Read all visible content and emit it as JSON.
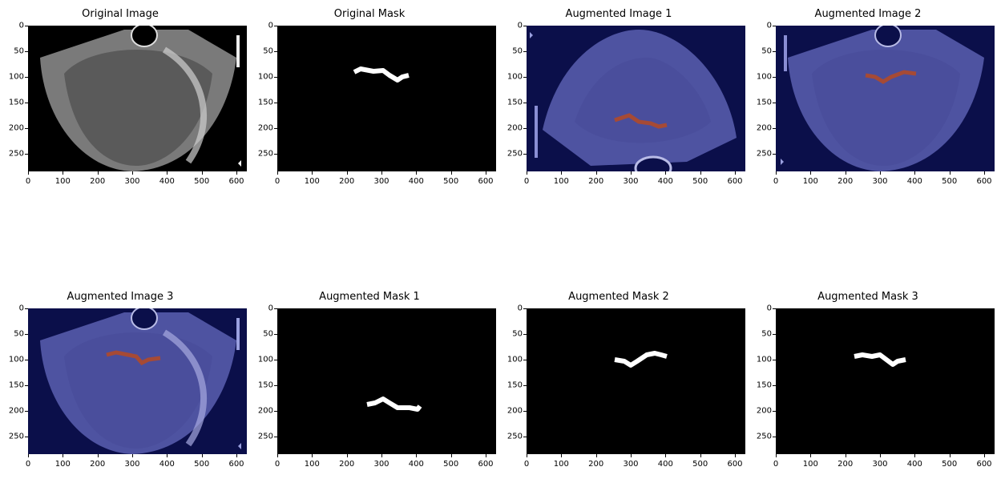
{
  "figure": {
    "panels": [
      {
        "id": "p1",
        "title": "Original Image"
      },
      {
        "id": "p2",
        "title": "Original Mask"
      },
      {
        "id": "p3",
        "title": "Augmented Image 1"
      },
      {
        "id": "p4",
        "title": "Augmented Image 2"
      },
      {
        "id": "p5",
        "title": "Augmented Image 3"
      },
      {
        "id": "p6",
        "title": "Augmented Mask 1"
      },
      {
        "id": "p7",
        "title": "Augmented Mask 2"
      },
      {
        "id": "p8",
        "title": "Augmented Mask 3"
      }
    ],
    "x_ticks": [
      "0",
      "100",
      "200",
      "300",
      "400",
      "500",
      "600"
    ],
    "y_ticks": [
      "0",
      "50",
      "100",
      "150",
      "200",
      "250"
    ],
    "colors": {
      "mask_fg": "#ffffff",
      "mask_bg": "#000000",
      "aug_bg": "#0b0f4a",
      "overlay": "#b04a2a"
    }
  }
}
